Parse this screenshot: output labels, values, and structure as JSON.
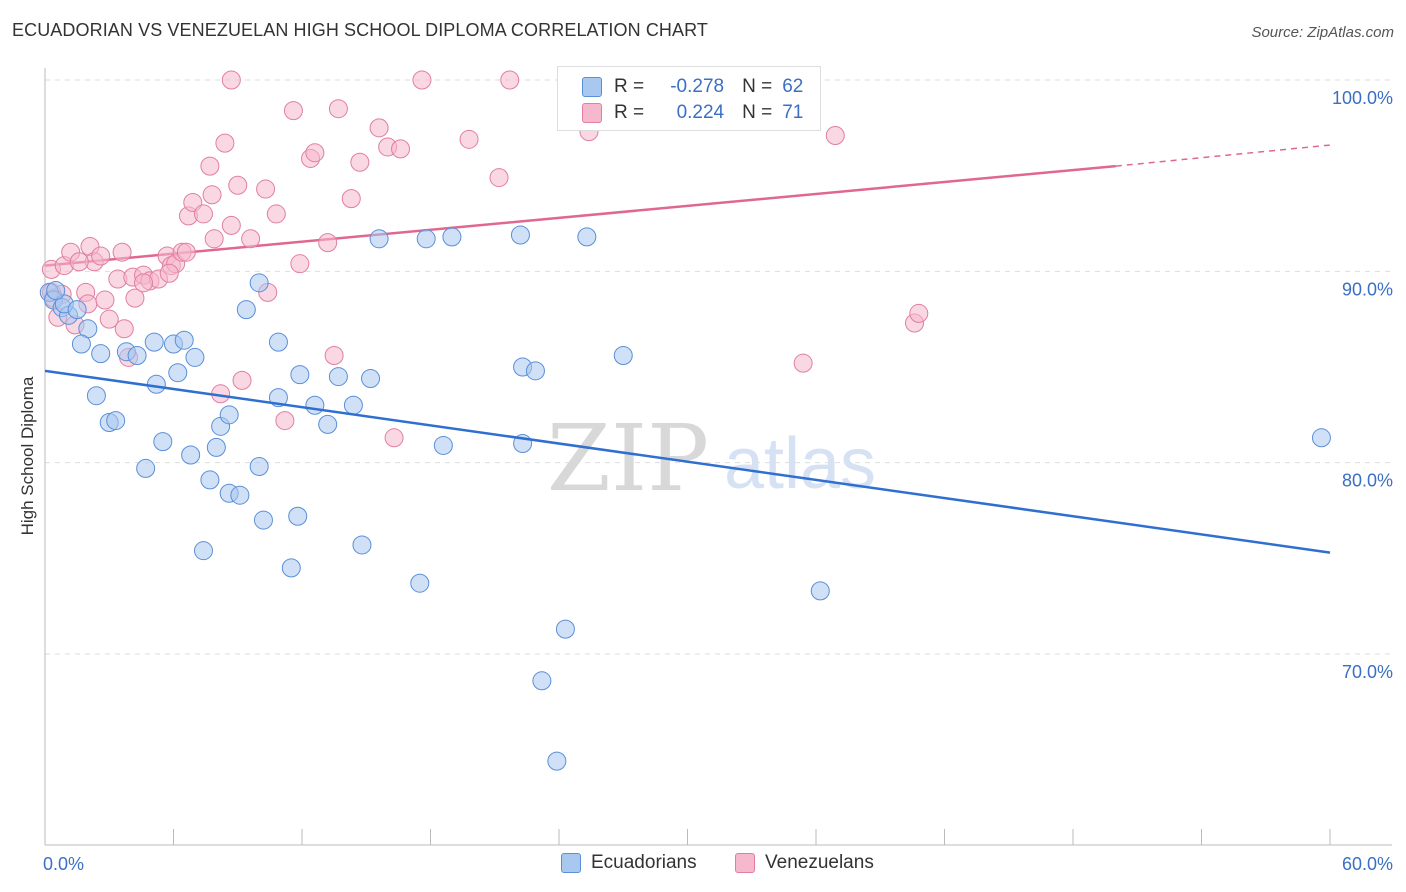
{
  "header": {
    "title": "ECUADORIAN VS VENEZUELAN HIGH SCHOOL DIPLOMA CORRELATION CHART",
    "source": "Source: ZipAtlas.com"
  },
  "legend": {
    "series": [
      {
        "r_label": "R =",
        "r_value": "-0.278",
        "n_label": "N =",
        "n_value": "62"
      },
      {
        "r_label": "R =",
        "r_value": "0.224",
        "n_label": "N =",
        "n_value": "71"
      }
    ]
  },
  "bottom_legend": [
    "Ecuadorians",
    "Venezuelans"
  ],
  "watermark": {
    "zip": "ZIP",
    "atlas": "atlas"
  },
  "colors": {
    "blue_fill": "#a9c8f0",
    "blue_stroke": "#5a8fd8",
    "blue_line": "#2f6fd0",
    "pink_fill": "#f6b8cc",
    "pink_stroke": "#e07fa0",
    "pink_line": "#e06890",
    "axis_label": "#3b6fc4",
    "grid": "#dddddd"
  },
  "chart_data": {
    "type": "scatter",
    "title": "ECUADORIAN VS VENEZUELAN HIGH SCHOOL DIPLOMA CORRELATION CHART",
    "xlabel": "",
    "ylabel": "High School Diploma",
    "xlim": [
      0,
      60
    ],
    "ylim": [
      60,
      100
    ],
    "x_tick_labels": [
      "0.0%",
      "60.0%"
    ],
    "y_ticks": [
      70,
      80,
      90,
      100
    ],
    "y_tick_labels": [
      "70.0%",
      "80.0%",
      "90.0%",
      "100.0%"
    ],
    "series": [
      {
        "name": "Ecuadorians",
        "r": -0.278,
        "n": 62,
        "trend": {
          "x": [
            0,
            60
          ],
          "y": [
            84.8,
            75.3
          ]
        },
        "points": [
          [
            0.2,
            88.9
          ],
          [
            0.4,
            88.5
          ],
          [
            0.8,
            88.1
          ],
          [
            1.1,
            87.7
          ],
          [
            2.0,
            87.0
          ],
          [
            1.7,
            86.2
          ],
          [
            2.6,
            85.7
          ],
          [
            3.8,
            85.8
          ],
          [
            4.3,
            85.6
          ],
          [
            5.1,
            86.3
          ],
          [
            6.0,
            86.2
          ],
          [
            6.5,
            86.4
          ],
          [
            7.0,
            85.5
          ],
          [
            6.2,
            84.7
          ],
          [
            5.2,
            84.1
          ],
          [
            2.4,
            83.5
          ],
          [
            3.0,
            82.1
          ],
          [
            3.3,
            82.2
          ],
          [
            5.5,
            81.1
          ],
          [
            6.8,
            80.4
          ],
          [
            4.7,
            79.7
          ],
          [
            7.7,
            79.1
          ],
          [
            8.6,
            78.4
          ],
          [
            9.1,
            78.3
          ],
          [
            10.0,
            79.8
          ],
          [
            10.2,
            77.0
          ],
          [
            11.8,
            77.2
          ],
          [
            7.4,
            75.4
          ],
          [
            11.5,
            74.5
          ],
          [
            14.8,
            75.7
          ],
          [
            17.5,
            73.7
          ],
          [
            8.2,
            81.9
          ],
          [
            8.0,
            80.8
          ],
          [
            8.6,
            82.5
          ],
          [
            10.9,
            83.4
          ],
          [
            11.9,
            84.6
          ],
          [
            12.6,
            83.0
          ],
          [
            13.2,
            82.0
          ],
          [
            13.7,
            84.5
          ],
          [
            14.4,
            83.0
          ],
          [
            15.2,
            84.4
          ],
          [
            9.4,
            88.0
          ],
          [
            10.0,
            89.4
          ],
          [
            10.9,
            86.3
          ],
          [
            15.6,
            91.7
          ],
          [
            17.8,
            91.7
          ],
          [
            19.0,
            91.8
          ],
          [
            22.2,
            91.9
          ],
          [
            18.6,
            80.9
          ],
          [
            22.3,
            81.0
          ],
          [
            22.3,
            85.0
          ],
          [
            22.9,
            84.8
          ],
          [
            27.0,
            85.6
          ],
          [
            24.3,
            71.3
          ],
          [
            23.2,
            68.6
          ],
          [
            23.9,
            64.4
          ],
          [
            25.3,
            91.8
          ],
          [
            36.2,
            73.3
          ],
          [
            59.6,
            81.3
          ],
          [
            0.9,
            88.3
          ],
          [
            0.5,
            89.0
          ],
          [
            1.5,
            88.0
          ]
        ]
      },
      {
        "name": "Venezuelans",
        "r": 0.224,
        "n": 71,
        "trend": {
          "x": [
            0,
            50
          ],
          "y": [
            90.3,
            95.5
          ]
        },
        "trend_dashed": {
          "x": [
            50,
            60
          ],
          "y": [
            95.5,
            96.6
          ]
        },
        "points": [
          [
            0.3,
            90.1
          ],
          [
            0.9,
            90.3
          ],
          [
            1.2,
            91.0
          ],
          [
            0.3,
            88.9
          ],
          [
            0.8,
            88.8
          ],
          [
            0.6,
            87.6
          ],
          [
            1.4,
            87.2
          ],
          [
            1.9,
            88.9
          ],
          [
            2.0,
            88.3
          ],
          [
            2.1,
            91.3
          ],
          [
            2.3,
            90.5
          ],
          [
            2.6,
            90.8
          ],
          [
            2.8,
            88.5
          ],
          [
            3.0,
            87.5
          ],
          [
            3.4,
            89.6
          ],
          [
            3.6,
            91.0
          ],
          [
            3.7,
            87.0
          ],
          [
            4.1,
            89.7
          ],
          [
            4.2,
            88.6
          ],
          [
            4.6,
            89.8
          ],
          [
            4.9,
            89.5
          ],
          [
            5.3,
            89.6
          ],
          [
            5.7,
            90.8
          ],
          [
            5.9,
            90.3
          ],
          [
            6.1,
            90.4
          ],
          [
            6.4,
            91.0
          ],
          [
            6.6,
            91.0
          ],
          [
            6.7,
            92.9
          ],
          [
            6.9,
            93.6
          ],
          [
            7.4,
            93.0
          ],
          [
            7.7,
            95.5
          ],
          [
            7.8,
            94.0
          ],
          [
            7.9,
            91.7
          ],
          [
            8.4,
            96.7
          ],
          [
            8.7,
            92.4
          ],
          [
            9.0,
            94.5
          ],
          [
            9.6,
            91.7
          ],
          [
            10.3,
            94.3
          ],
          [
            10.4,
            88.9
          ],
          [
            10.8,
            93.0
          ],
          [
            11.6,
            98.4
          ],
          [
            11.9,
            90.4
          ],
          [
            12.4,
            95.9
          ],
          [
            12.6,
            96.2
          ],
          [
            13.2,
            91.5
          ],
          [
            13.7,
            98.5
          ],
          [
            14.3,
            93.8
          ],
          [
            14.7,
            95.7
          ],
          [
            8.7,
            100.0
          ],
          [
            17.6,
            100.0
          ],
          [
            21.7,
            100.0
          ],
          [
            15.6,
            97.5
          ],
          [
            16.0,
            96.5
          ],
          [
            16.6,
            96.4
          ],
          [
            19.8,
            96.9
          ],
          [
            21.2,
            94.9
          ],
          [
            25.4,
            97.3
          ],
          [
            36.9,
            97.1
          ],
          [
            40.6,
            87.3
          ],
          [
            40.8,
            87.8
          ],
          [
            35.4,
            85.2
          ],
          [
            8.2,
            83.6
          ],
          [
            9.2,
            84.3
          ],
          [
            11.2,
            82.2
          ],
          [
            13.5,
            85.6
          ],
          [
            16.3,
            81.3
          ],
          [
            1.6,
            90.5
          ],
          [
            4.6,
            89.4
          ],
          [
            5.8,
            89.9
          ],
          [
            3.9,
            85.5
          ],
          [
            0.4,
            88.6
          ]
        ]
      }
    ]
  }
}
